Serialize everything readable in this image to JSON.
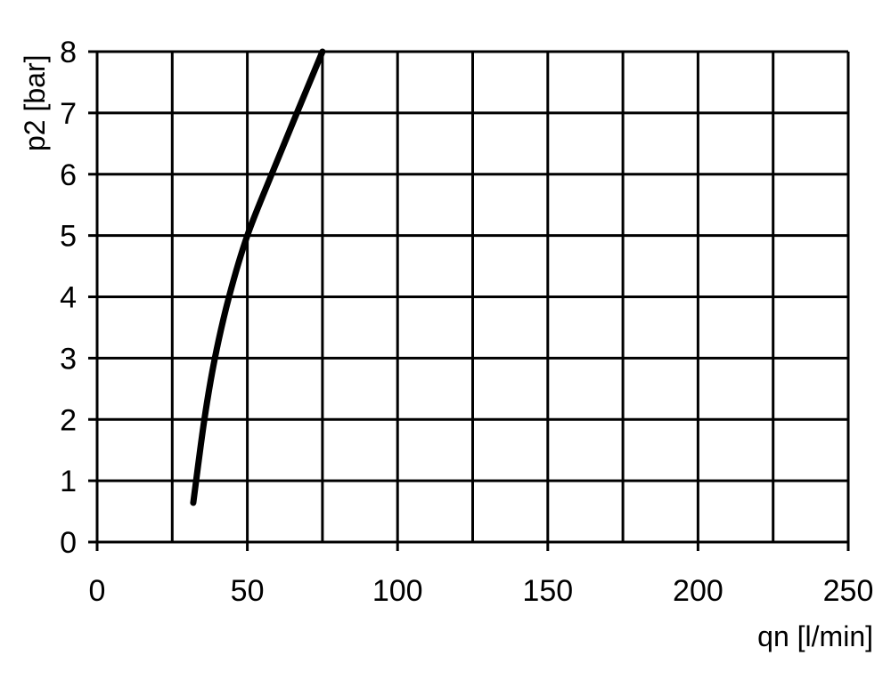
{
  "chart_data": {
    "type": "line",
    "title": "",
    "xlabel": "qn [l/min]",
    "ylabel": "p2 [bar]",
    "xlim": [
      0,
      250
    ],
    "ylim": [
      0,
      8
    ],
    "x_ticks": [
      "0",
      "50",
      "100",
      "150",
      "200",
      "250"
    ],
    "y_ticks": [
      "0",
      "1",
      "2",
      "3",
      "4",
      "5",
      "6",
      "7",
      "8"
    ],
    "grid": true,
    "x_grid_step": 25,
    "y_grid_step": 1,
    "line_color": "#000000",
    "series": [
      {
        "x": [
          32,
          35.7,
          39.2,
          43.9,
          50,
          58.1,
          66.5,
          75
        ],
        "y": [
          0.64,
          2,
          3,
          4,
          5,
          6,
          7,
          8
        ]
      }
    ]
  }
}
